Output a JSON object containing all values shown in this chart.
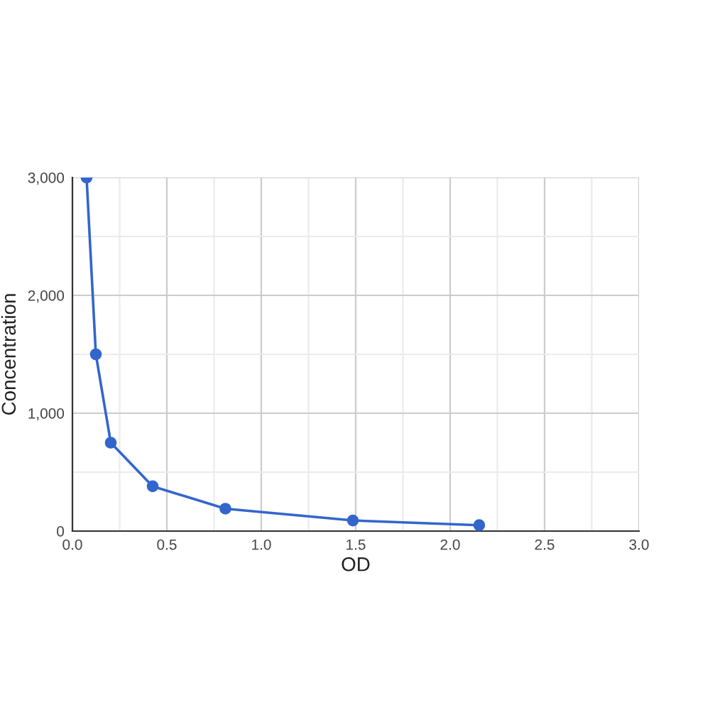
{
  "chart_data": {
    "type": "line",
    "xlabel": "OD",
    "ylabel": "Concentration",
    "x": [
      0.075,
      0.124,
      0.203,
      0.425,
      0.81,
      1.485,
      2.154
    ],
    "series": [
      {
        "color": "#3366cc",
        "values": [
          3000,
          1500,
          750,
          380,
          190,
          90,
          50
        ]
      }
    ],
    "xlim": [
      0,
      3
    ],
    "ylim": [
      0,
      3000
    ],
    "xticks": [
      {
        "value": 0,
        "label": "0.0"
      },
      {
        "value": 0.25,
        "label": null
      },
      {
        "value": 0.5,
        "label": "0.5"
      },
      {
        "value": 0.75,
        "label": null
      },
      {
        "value": 1,
        "label": "1.0"
      },
      {
        "value": 1.25,
        "label": null
      },
      {
        "value": 1.5,
        "label": "1.5"
      },
      {
        "value": 1.75,
        "label": null
      },
      {
        "value": 2,
        "label": "2.0"
      },
      {
        "value": 2.25,
        "label": null
      },
      {
        "value": 2.5,
        "label": "2.5"
      },
      {
        "value": 2.75,
        "label": null
      },
      {
        "value": 3,
        "label": "3.0"
      }
    ],
    "yticks": [
      {
        "value": 0,
        "label": "0"
      },
      {
        "value": 500,
        "label": null
      },
      {
        "value": 1000,
        "label": "1,000"
      },
      {
        "value": 1500,
        "label": null
      },
      {
        "value": 2000,
        "label": "2,000"
      },
      {
        "value": 2500,
        "label": null
      },
      {
        "value": 3000,
        "label": "3,000"
      }
    ],
    "grid": true,
    "marker": "circle",
    "line_style": "solid"
  }
}
